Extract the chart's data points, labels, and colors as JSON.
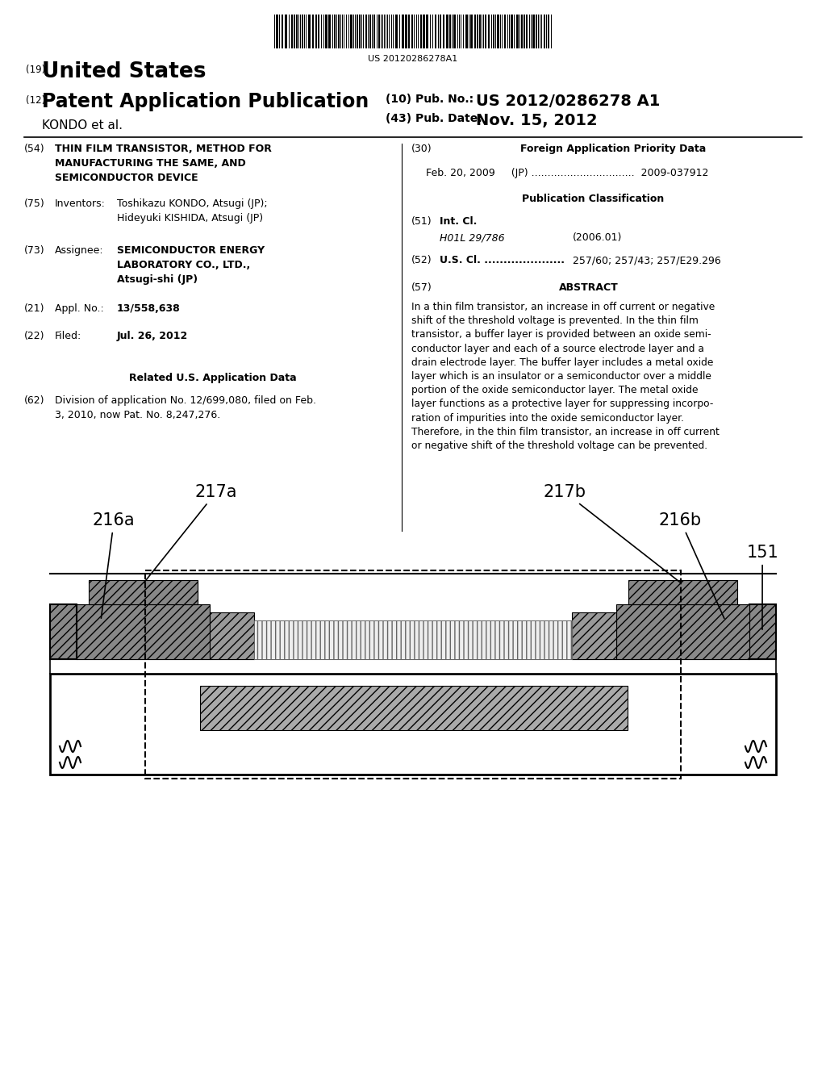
{
  "background_color": "#ffffff",
  "barcode_text": "US 20120286278A1",
  "patent_number_label": "(19)",
  "patent_title_us": "United States",
  "pub_label": "(12)",
  "pub_title": "Patent Application Publication",
  "pub_num_label": "(10) Pub. No.:",
  "pub_num": "US 2012/0286278 A1",
  "inventor_name_label": "KONDO et al.",
  "pub_date_label": "(43) Pub. Date:",
  "pub_date": "Nov. 15, 2012",
  "field54_label": "(54)",
  "field54_title": "THIN FILM TRANSISTOR, METHOD FOR\nMANUFACTURING THE SAME, AND\nSEMICONDUCTOR DEVICE",
  "field75_label": "(75)",
  "field75_name": "Inventors:",
  "field75_value": "Toshikazu KONDO, Atsugi (JP);\nHideyuki KISHIDA, Atsugi (JP)",
  "field73_label": "(73)",
  "field73_name": "Assignee:",
  "field73_value": "SEMICONDUCTOR ENERGY\nLABORATORY CO., LTD.,\nAtsugi-shi (JP)",
  "field21_label": "(21)",
  "field21_name": "Appl. No.:",
  "field21_value": "13/558,638",
  "field22_label": "(22)",
  "field22_name": "Filed:",
  "field22_value": "Jul. 26, 2012",
  "related_title": "Related U.S. Application Data",
  "field62_label": "(62)",
  "field62_value": "Division of application No. 12/699,080, filed on Feb.\n3, 2010, now Pat. No. 8,247,276.",
  "field30_label": "(30)",
  "field30_title": "Foreign Application Priority Data",
  "field30_value": "Feb. 20, 2009     (JP) ................................  2009-037912",
  "pub_class_title": "Publication Classification",
  "field51_label": "(51)",
  "field51_name": "Int. Cl.",
  "field51_value": "H01L 29/786",
  "field51_date": "(2006.01)",
  "field52_label": "(52)",
  "field52_name": "U.S. Cl. .....................",
  "field52_value": "257/60; 257/43; 257/E29.296",
  "field57_label": "(57)",
  "field57_title": "ABSTRACT",
  "abstract_text": "In a thin film transistor, an increase in off current or negative\nshift of the threshold voltage is prevented. In the thin film\ntransistor, a buffer layer is provided between an oxide semi-\nconductor layer and each of a source electrode layer and a\ndrain electrode layer. The buffer layer includes a metal oxide\nlayer which is an insulator or a semiconductor over a middle\nportion of the oxide semiconductor layer. The metal oxide\nlayer functions as a protective layer for suppressing incorpo-\nration of impurities into the oxide semiconductor layer.\nTherefore, in the thin film transistor, an increase in off current\nor negative shift of the threshold voltage can be prevented."
}
